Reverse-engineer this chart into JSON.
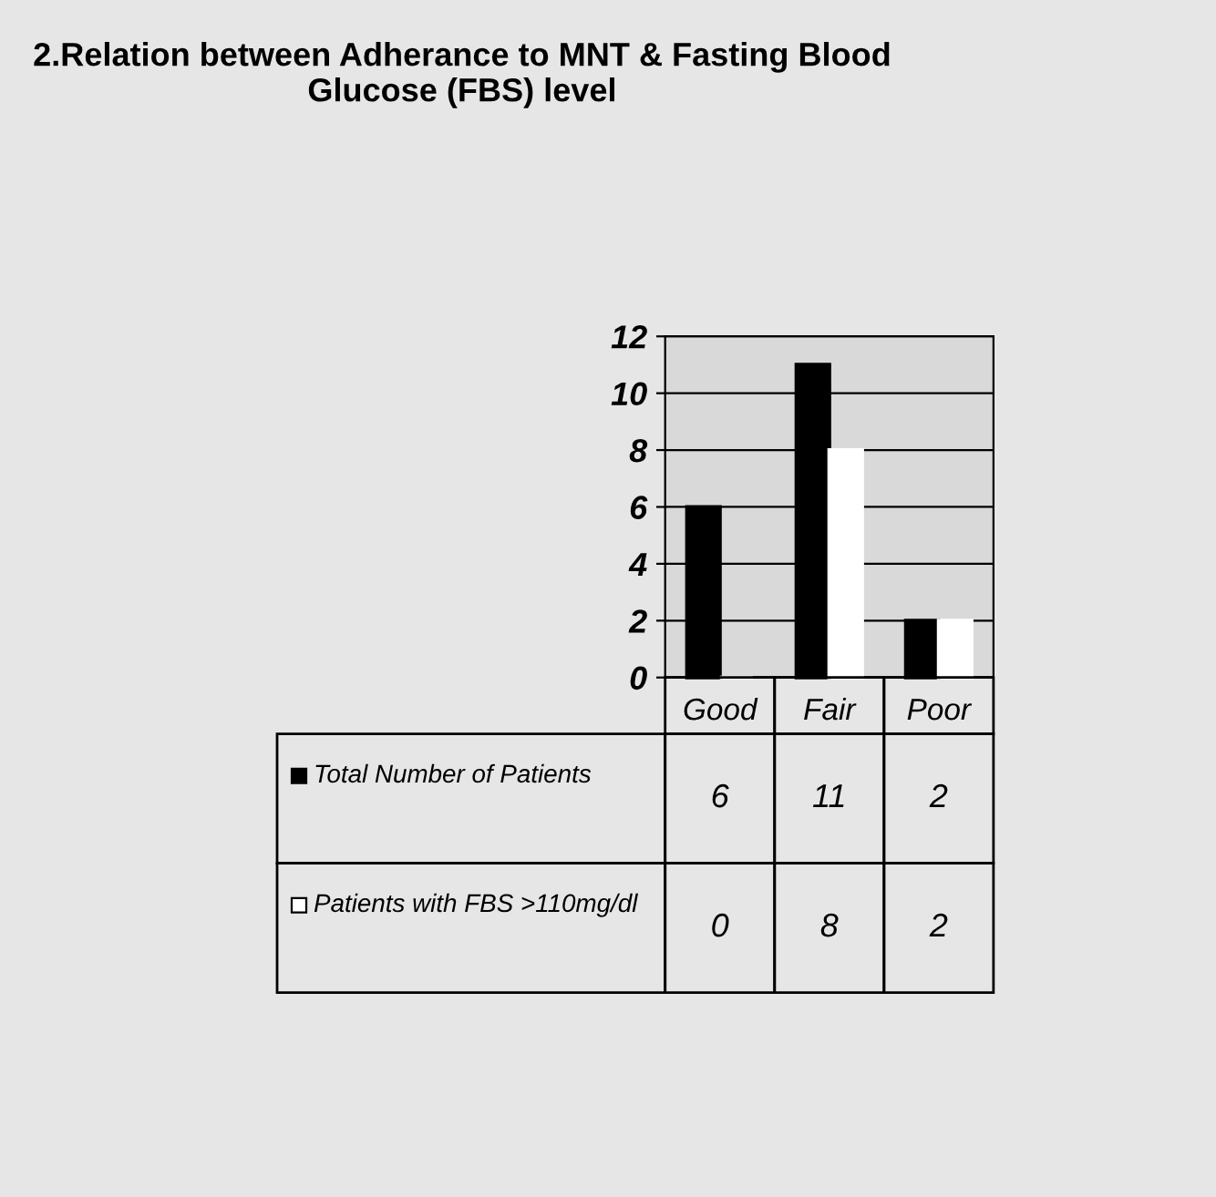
{
  "chart_data": {
    "type": "bar",
    "title": "2.Relation between Adherance to MNT & Fasting Blood Glucose (FBS) level",
    "categories": [
      "Good",
      "Fair",
      "Poor"
    ],
    "series": [
      {
        "name": "Total Number of Patients",
        "color": "#000000",
        "values": [
          6,
          11,
          2
        ]
      },
      {
        "name": "Patients with FBS >110mg/dl",
        "color": "#ffffff",
        "values": [
          0,
          8,
          2
        ]
      }
    ],
    "ylim": [
      0,
      12
    ],
    "yticks": [
      0,
      2,
      4,
      6,
      8,
      10,
      12
    ],
    "grid": "y",
    "legend": "bottom",
    "data_labels": true
  }
}
